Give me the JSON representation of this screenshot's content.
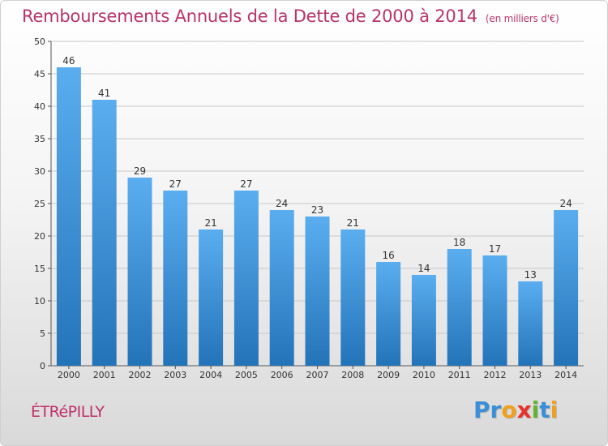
{
  "header": {
    "title": "Remboursements Annuels de la Dette de 2000 à 2014",
    "unit": "(en milliers d'€)"
  },
  "footer": {
    "commune": "ÉTRéPILLY",
    "logo": {
      "text": "Proxiti",
      "letters": [
        {
          "char": "P",
          "color": "#3a8fd8"
        },
        {
          "char": "r",
          "color": "#3a8fd8"
        },
        {
          "char": "o",
          "color": "#f0a020"
        },
        {
          "char": "x",
          "color": "#e8312a"
        },
        {
          "char": "i",
          "color": "#63b32e"
        },
        {
          "char": "t",
          "color": "#3a8fd8"
        },
        {
          "char": "i",
          "color": "#f0a020"
        }
      ]
    }
  },
  "colors": {
    "bar_top": "#5aaef0",
    "bar_bottom": "#2373b8",
    "grid": "#c8c8c8",
    "title": "#b8336a"
  },
  "chart_data": {
    "type": "bar",
    "title": "Remboursements Annuels de la Dette de 2000 à 2014",
    "xlabel": "",
    "ylabel": "(en milliers d'€)",
    "categories": [
      "2000",
      "2001",
      "2002",
      "2003",
      "2004",
      "2005",
      "2006",
      "2007",
      "2008",
      "2009",
      "2010",
      "2011",
      "2012",
      "2013",
      "2014"
    ],
    "values": [
      46,
      41,
      29,
      27,
      21,
      27,
      24,
      23,
      21,
      16,
      14,
      18,
      17,
      13,
      24
    ],
    "ylim": [
      0,
      50
    ],
    "yticks": [
      0,
      5,
      10,
      15,
      20,
      25,
      30,
      35,
      40,
      45,
      50
    ],
    "grid": true
  }
}
